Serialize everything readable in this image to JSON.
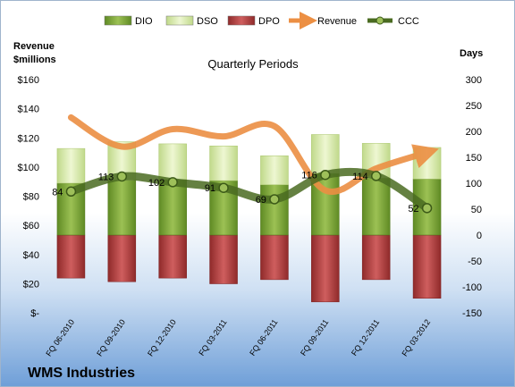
{
  "company": "WMS Industries",
  "chart_data": {
    "type": "bar",
    "title": "Quarterly Periods",
    "categories": [
      "FQ 06-2010",
      "FQ 09-2010",
      "FQ 12-2010",
      "FQ 03-2011",
      "FQ 06-2011",
      "FQ 09-2011",
      "FQ 12-2011",
      "FQ 03-2012"
    ],
    "left_axis": {
      "label_line1": "Revenue",
      "label_line2": "$millions",
      "range": [
        0,
        160
      ],
      "ticks": [
        "$-",
        "$20",
        "$40",
        "$60",
        "$80",
        "$100",
        "$120",
        "$140",
        "$160"
      ]
    },
    "right_axis": {
      "label": "Days",
      "range": [
        -150,
        300
      ],
      "ticks": [
        "-150",
        "-100",
        "-50",
        "0",
        "50",
        "100",
        "150",
        "200",
        "250",
        "300"
      ]
    },
    "legend": {
      "position": "top",
      "entries": [
        "DIO",
        "DSO",
        "DPO",
        "Revenue",
        "CCC"
      ]
    },
    "series": [
      {
        "name": "DIO",
        "axis": "right",
        "values": [
          100,
          106,
          107,
          105,
          97,
          119,
          110,
          108
        ]
      },
      {
        "name": "DSO",
        "axis": "right",
        "values": [
          67,
          74,
          69,
          67,
          56,
          75,
          67,
          61
        ]
      },
      {
        "name": "DPO",
        "axis": "right",
        "values": [
          -83,
          -90,
          -83,
          -94,
          -86,
          -129,
          -86,
          -122
        ]
      },
      {
        "name": "Revenue",
        "axis": "left",
        "values": [
          134,
          114,
          126,
          121,
          128,
          84,
          99,
          110
        ]
      },
      {
        "name": "CCC",
        "axis": "right",
        "values": [
          84,
          113,
          102,
          91,
          69,
          116,
          114,
          52
        ],
        "labels": [
          "84",
          "113",
          "102",
          "91",
          "69",
          "116",
          "114",
          "52"
        ]
      }
    ],
    "colors": {
      "DIO": "#7ea33a",
      "DSO": "#d3e6a0",
      "DPO": "#b04040",
      "Revenue": "#ec8f43",
      "CCC": "#4a6b21"
    },
    "grid": false
  }
}
